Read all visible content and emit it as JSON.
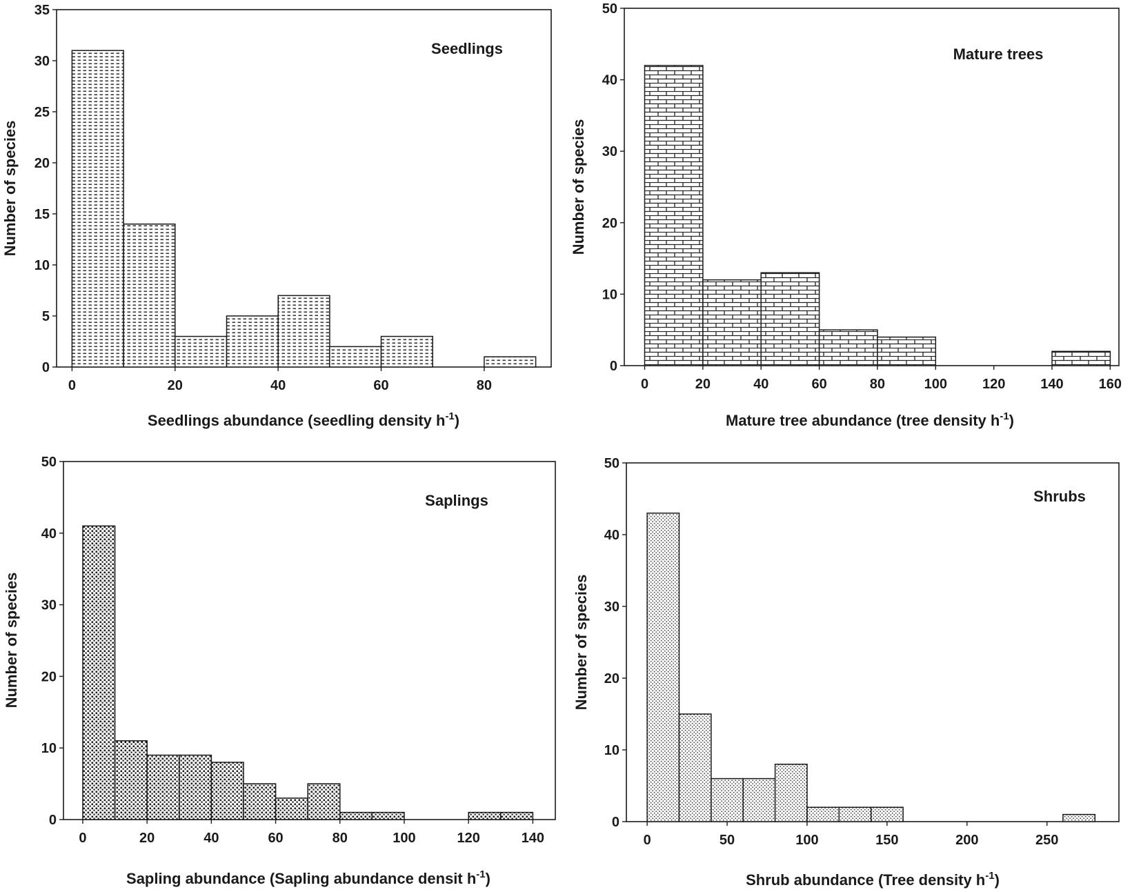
{
  "chart_data": [
    {
      "type": "bar",
      "title": "Seedlings",
      "xlabel": "Seedlings abundance (seedling density h",
      "xlabel_sup": "-1",
      "xlabel_close": ")",
      "ylabel": "Number of species",
      "bin_edges": [
        0,
        10,
        20,
        30,
        40,
        50,
        60,
        70,
        80,
        90
      ],
      "values": [
        31,
        14,
        3,
        5,
        7,
        2,
        3,
        0,
        1
      ],
      "xlim": [
        -3,
        93
      ],
      "ylim": [
        0,
        35
      ],
      "xticks": [
        0,
        20,
        40,
        60,
        80
      ],
      "yticks": [
        0,
        5,
        10,
        15,
        20,
        25,
        30,
        35
      ],
      "pattern": "dash",
      "grid": false
    },
    {
      "type": "bar",
      "title": "Mature trees",
      "xlabel": "Mature tree abundance (tree density h",
      "xlabel_sup": "-1",
      "xlabel_close": ")",
      "ylabel": "Number of species",
      "bin_edges": [
        0,
        20,
        40,
        60,
        80,
        100,
        120,
        140,
        160
      ],
      "values": [
        42,
        12,
        13,
        5,
        4,
        0,
        0,
        2
      ],
      "xlim": [
        -7,
        163
      ],
      "ylim": [
        0,
        50
      ],
      "xticks": [
        0,
        20,
        40,
        60,
        80,
        100,
        120,
        140,
        160
      ],
      "yticks": [
        0,
        10,
        20,
        30,
        40,
        50
      ],
      "pattern": "brick",
      "grid": false
    },
    {
      "type": "bar",
      "title": "Saplings",
      "xlabel": "Sapling abundance (Sapling abundance densit h",
      "xlabel_sup": "-1",
      "xlabel_close": ")",
      "ylabel": "Number of species",
      "bin_edges": [
        0,
        10,
        20,
        30,
        40,
        50,
        60,
        70,
        80,
        90,
        100,
        110,
        120,
        130,
        140
      ],
      "values": [
        41,
        11,
        9,
        9,
        8,
        5,
        3,
        5,
        1,
        1,
        0,
        0,
        1,
        1
      ],
      "xlim": [
        -6,
        147
      ],
      "ylim": [
        0,
        50
      ],
      "xticks": [
        0,
        20,
        40,
        60,
        80,
        100,
        120,
        140
      ],
      "yticks": [
        0,
        10,
        20,
        30,
        40,
        50
      ],
      "pattern": "dots",
      "grid": false
    },
    {
      "type": "bar",
      "title": "Shrubs",
      "xlabel": "Shrub abundance (Tree density h",
      "xlabel_sup": "-1",
      "xlabel_close": ")",
      "ylabel": "Number of species",
      "bin_edges": [
        0,
        20,
        40,
        60,
        80,
        100,
        120,
        140,
        160,
        180,
        200,
        220,
        240,
        260,
        280
      ],
      "values": [
        43,
        15,
        6,
        6,
        8,
        2,
        2,
        2,
        0,
        0,
        0,
        0,
        0,
        1
      ],
      "xlim": [
        -13,
        295
      ],
      "ylim": [
        0,
        50
      ],
      "xticks": [
        0,
        50,
        100,
        150,
        200,
        250
      ],
      "yticks": [
        0,
        10,
        20,
        30,
        40,
        50
      ],
      "pattern": "finedots",
      "grid": false
    }
  ]
}
